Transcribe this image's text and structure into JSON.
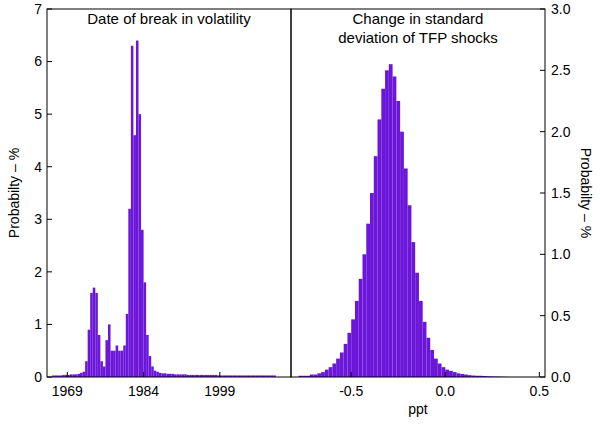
{
  "chart_data": [
    {
      "type": "histogram",
      "title": "Date of break in volatility",
      "ylabel": "Probabilty – %",
      "color": "#6b16d8",
      "bins": [
        1966,
        1966.5,
        1967,
        1967.5,
        1968,
        1968.5,
        1969,
        1969.5,
        1970,
        1970.5,
        1971,
        1971.5,
        1972,
        1972.5,
        1973,
        1973.5,
        1974,
        1974.5,
        1975,
        1975.5,
        1976,
        1976.5,
        1977,
        1977.5,
        1978,
        1978.5,
        1979,
        1979.5,
        1980,
        1980.5,
        1981,
        1981.5,
        1982,
        1982.5,
        1983,
        1983.5,
        1984,
        1984.5,
        1985,
        1985.5,
        1986,
        1986.5,
        1987,
        1987.5,
        1988,
        1988.5,
        1989,
        1989.5,
        1990,
        1990.5,
        1991,
        1991.5,
        1992,
        1992.5,
        1993,
        1993.5,
        1994,
        1994.5,
        1995,
        1995.5,
        1996,
        1996.5,
        1997,
        1997.5,
        1998,
        1998.5,
        1999,
        1999.5,
        2000,
        2000.5,
        2001,
        2001.5,
        2002,
        2002.5,
        2003,
        2003.5,
        2004,
        2004.5,
        2005,
        2005.5,
        2006,
        2006.5,
        2007,
        2007.5,
        2008,
        2008.5,
        2009,
        2009.5,
        2010
      ],
      "values": [
        0.03,
        0.03,
        0.03,
        0.03,
        0.04,
        0.04,
        0.04,
        0.05,
        0.05,
        0.05,
        0.06,
        0.08,
        0.1,
        0.3,
        0.9,
        1.6,
        1.7,
        1.6,
        0.8,
        0.3,
        0.2,
        0.7,
        1.0,
        0.5,
        0.5,
        0.6,
        0.5,
        0.5,
        0.6,
        1.2,
        3.2,
        6.3,
        4.6,
        6.4,
        5.0,
        2.8,
        1.8,
        0.8,
        0.4,
        0.2,
        0.12,
        0.1,
        0.08,
        0.07,
        0.07,
        0.06,
        0.06,
        0.06,
        0.05,
        0.05,
        0.05,
        0.05,
        0.05,
        0.04,
        0.04,
        0.04,
        0.04,
        0.04,
        0.04,
        0.04,
        0.04,
        0.04,
        0.04,
        0.04,
        0.04,
        0.03,
        0.03,
        0.03,
        0.03,
        0.03,
        0.03,
        0.03,
        0.03,
        0.03,
        0.03,
        0.03,
        0.03,
        0.03,
        0.03,
        0.03,
        0.03,
        0.03,
        0.03,
        0.03,
        0.03,
        0.03,
        0.03,
        0.03
      ],
      "xlim": [
        1965,
        2013
      ],
      "xticks": [
        1969,
        1984,
        1999
      ],
      "ylim": [
        0,
        7
      ],
      "yticks": [
        0,
        1,
        2,
        3,
        4,
        5,
        6,
        7
      ]
    },
    {
      "type": "histogram",
      "title": "Change in standard\ndeviation of TFP shocks",
      "ylabel": "Probabilty – %",
      "xlabel": "ppt",
      "color": "#6b16d8",
      "bins": [
        -0.8,
        -0.78,
        -0.76,
        -0.74,
        -0.72,
        -0.7,
        -0.68,
        -0.66,
        -0.64,
        -0.62,
        -0.6,
        -0.58,
        -0.56,
        -0.54,
        -0.52,
        -0.5,
        -0.48,
        -0.46,
        -0.44,
        -0.42,
        -0.4,
        -0.38,
        -0.36,
        -0.34,
        -0.32,
        -0.3,
        -0.28,
        -0.26,
        -0.24,
        -0.22,
        -0.2,
        -0.18,
        -0.16,
        -0.14,
        -0.12,
        -0.1,
        -0.08,
        -0.06,
        -0.04,
        -0.02,
        0,
        0.02,
        0.04,
        0.06,
        0.08,
        0.1,
        0.12,
        0.14,
        0.16,
        0.18,
        0.2,
        0.22,
        0.24,
        0.26,
        0.28,
        0.3,
        0.32,
        0.34
      ],
      "values": [
        0,
        0.01,
        0.01,
        0.01,
        0.02,
        0.02,
        0.03,
        0.04,
        0.06,
        0.08,
        0.11,
        0.15,
        0.2,
        0.27,
        0.36,
        0.47,
        0.62,
        0.8,
        1.0,
        1.25,
        1.5,
        1.8,
        2.1,
        2.35,
        2.5,
        2.55,
        2.45,
        2.25,
        2.0,
        1.7,
        1.4,
        1.1,
        0.85,
        0.62,
        0.45,
        0.32,
        0.22,
        0.15,
        0.11,
        0.08,
        0.06,
        0.05,
        0.04,
        0.03,
        0.025,
        0.02,
        0.015,
        0.012,
        0.01,
        0.01,
        0.008,
        0.006,
        0.005,
        0.004,
        0.003,
        0.002,
        0.001
      ],
      "xlim": [
        -0.82,
        0.53
      ],
      "xticks": [
        -0.5,
        {
          "value": 0,
          "label": "0.0"
        },
        0.5
      ],
      "ylim": [
        0,
        3
      ],
      "yticks": [
        {
          "value": 0,
          "label": "0.0"
        },
        0.5,
        {
          "value": 1,
          "label": "1.0"
        },
        1.5,
        {
          "value": 2,
          "label": "2.0"
        },
        2.5,
        {
          "value": 3,
          "label": "3.0"
        }
      ]
    }
  ]
}
